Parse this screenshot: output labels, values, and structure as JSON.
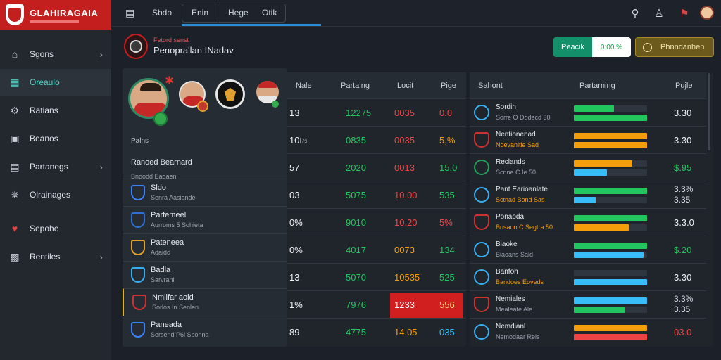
{
  "brand": {
    "name": "GLAHIRAGAIA"
  },
  "sidebar": {
    "items": [
      {
        "label": "Sgons",
        "icon": "home-icon",
        "chevron": true,
        "active": false
      },
      {
        "label": "Oreaulo",
        "icon": "dashboard-icon",
        "chevron": false,
        "active": true
      },
      {
        "label": "Ratians",
        "icon": "gear-icon",
        "chevron": false,
        "active": false
      },
      {
        "label": "Beanos",
        "icon": "briefcase-icon",
        "chevron": false,
        "active": false
      },
      {
        "label": "Partanegs",
        "icon": "lock-icon",
        "chevron": true,
        "active": false
      },
      {
        "label": "Olrainages",
        "icon": "settings-icon",
        "chevron": false,
        "active": false
      },
      {
        "label": "Sepohe",
        "icon": "heart-icon",
        "chevron": false,
        "active": false
      },
      {
        "label": "Rentiles",
        "icon": "grid-icon",
        "chevron": true,
        "active": false
      }
    ]
  },
  "topbar": {
    "tabs": [
      "Sbdo",
      "Enin",
      "Hege",
      "Otik"
    ]
  },
  "header": {
    "subtitle": "Fetord senst",
    "title": "Penopra'lan INadav",
    "result_label": "Peacik",
    "result_value": "0:00 %",
    "gold_button": "Phnndanhen"
  },
  "players": {
    "label": "Palns",
    "top": {
      "name": "Ranoed Bearnard",
      "sub": "Bnoodd Eaoaen"
    },
    "rows": [
      {
        "name": "Sldo",
        "sub": "Senra Aasiande",
        "crest": "#3b82f6"
      },
      {
        "name": "Parfemeel",
        "sub": "Aurroms 5 Sohieta",
        "crest": "#2e6fd1"
      },
      {
        "name": "Pateneea",
        "sub": "Adaido",
        "crest": "#e0a030"
      },
      {
        "name": "Badla",
        "sub": "Sarvrani",
        "crest": "#38aef0"
      },
      {
        "name": "Nmlifar aold",
        "sub": "Sorlos In Senlen",
        "crest": "#d13030"
      },
      {
        "name": "Paneada",
        "sub": "Sersend P6l Sbonna",
        "crest": "#3b82f6"
      }
    ]
  },
  "stats": {
    "headers": [
      "Nale",
      "Partalng",
      "Locit",
      "Pige"
    ],
    "rows": [
      [
        "13",
        "12275",
        "0035",
        "0.0"
      ],
      [
        "10ta",
        "0835",
        "0035",
        "5,%"
      ],
      [
        "57",
        "2020",
        "0013",
        "15.0"
      ],
      [
        "03",
        "5075",
        "10.00",
        "535"
      ],
      [
        "0%",
        "9010",
        "10.20",
        "5%"
      ],
      [
        "0%",
        "4017",
        "0073",
        "134"
      ],
      [
        "13",
        "5070",
        "10535",
        "525"
      ],
      [
        "1%",
        "7976",
        "1233",
        "556"
      ],
      [
        "89",
        "4775",
        "14.05",
        "035"
      ]
    ]
  },
  "rank": {
    "headers": [
      "Sahont",
      "Partarning",
      "Pujle"
    ],
    "rows": [
      {
        "name": "Sordin",
        "sub": "Sorre O Dodecd 30",
        "value": "3.30",
        "value2": "",
        "crest": "blue",
        "warn": false,
        "bars": [
          {
            "v": 0.55,
            "c": "#22c55e"
          },
          {
            "v": 1.0,
            "c": "#22c55e"
          }
        ]
      },
      {
        "name": "Nentionenad",
        "sub": "Noevanitle Sad",
        "value": "3.30",
        "value2": "",
        "crest": "red",
        "warn": true,
        "bars": [
          {
            "v": 1.0,
            "c": "#f59e0b"
          },
          {
            "v": 1.0,
            "c": "#f59e0b"
          }
        ]
      },
      {
        "name": "Reclands",
        "sub": "Scnne C Ie 50",
        "value": "$.95",
        "value2": "",
        "crest": "green",
        "warn": false,
        "bars": [
          {
            "v": 0.8,
            "c": "#f59e0b"
          },
          {
            "v": 0.45,
            "c": "#38bdf8"
          }
        ]
      },
      {
        "name": "Pant Earioanlate",
        "sub": "Sctnad Bond Sas",
        "value": "3.3%",
        "value2": "3.35",
        "crest": "blue",
        "warn": true,
        "bars": [
          {
            "v": 1.0,
            "c": "#22c55e"
          },
          {
            "v": 0.3,
            "c": "#38bdf8"
          }
        ]
      },
      {
        "name": "Ponaoda",
        "sub": "Bosaon C Segtra 50",
        "value": "3.3.0",
        "value2": "",
        "crest": "red",
        "warn": true,
        "bars": [
          {
            "v": 1.0,
            "c": "#22c55e"
          },
          {
            "v": 0.75,
            "c": "#f59e0b"
          }
        ]
      },
      {
        "name": "Biaoke",
        "sub": "Biaoans Sald",
        "value": "$.20",
        "value2": "",
        "crest": "blue",
        "warn": false,
        "bars": [
          {
            "v": 1.0,
            "c": "#22c55e"
          },
          {
            "v": 0.95,
            "c": "#38bdf8"
          }
        ]
      },
      {
        "name": "Banfoh",
        "sub": "Bandoes Eoveds",
        "value": "3.30",
        "value2": "",
        "crest": "blue",
        "warn": true,
        "bars": [
          {
            "v": 0.0,
            "c": "#22c55e"
          },
          {
            "v": 1.0,
            "c": "#38bdf8"
          }
        ]
      },
      {
        "name": "Nemiales",
        "sub": "Mealeate Ale",
        "value": "3.3%",
        "value2": "3.35",
        "crest": "red",
        "warn": false,
        "bars": [
          {
            "v": 1.0,
            "c": "#38bdf8"
          },
          {
            "v": 0.7,
            "c": "#22c55e"
          }
        ]
      },
      {
        "name": "Nemdianl",
        "sub": "Nemodaar Rels",
        "value": "03.0",
        "value2": "",
        "crest": "blue",
        "warn": false,
        "bars": [
          {
            "v": 1.0,
            "c": "#f59e0b"
          },
          {
            "v": 1.0,
            "c": "#ef4444"
          }
        ]
      }
    ]
  }
}
